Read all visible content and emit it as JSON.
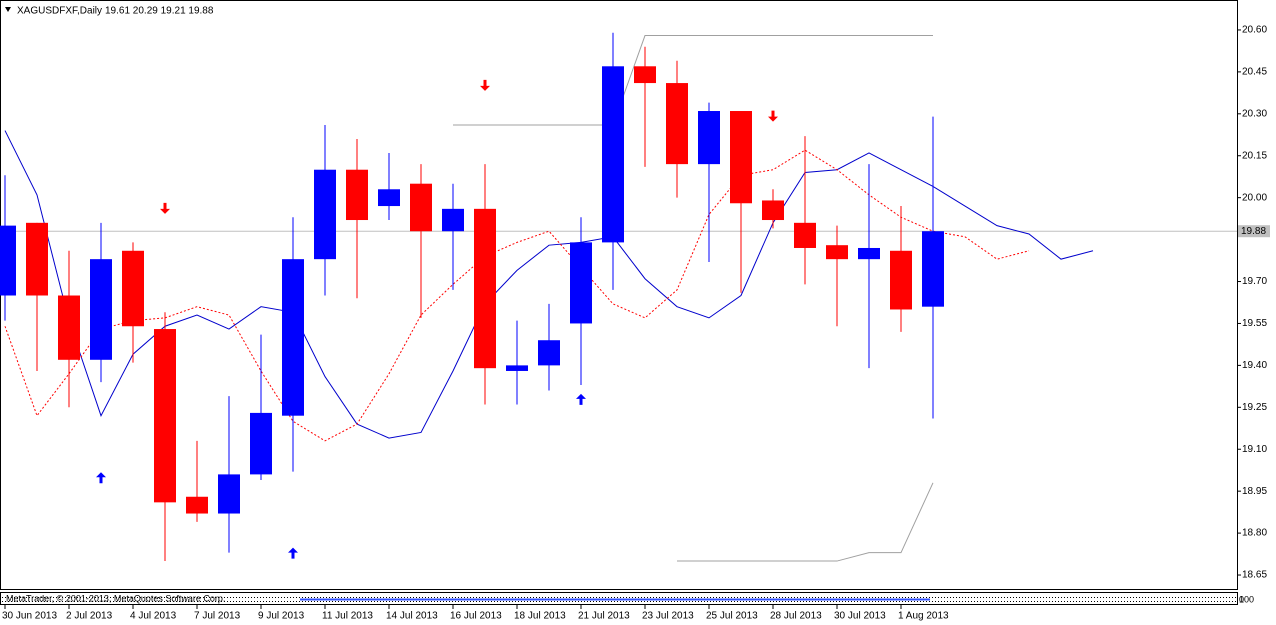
{
  "chart_data": {
    "type": "candlestick",
    "title": "XAGUSDFXF,Daily",
    "subtitle": "19.61 20.29 19.21 19.88",
    "categories": [
      "30 Jun 2013",
      null,
      "2 Jul 2013",
      null,
      "4 Jul 2013",
      null,
      "7 Jul 2013",
      null,
      "9 Jul 2013",
      null,
      "11 Jul 2013",
      null,
      "14 Jul 2013",
      null,
      "16 Jul 2013",
      null,
      "18 Jul 2013",
      null,
      "21 Jul 2013",
      null,
      "23 Jul 2013",
      null,
      "25 Jul 2013",
      null,
      "28 Jul 2013",
      null,
      "30 Jul 2013",
      null,
      "1 Aug 2013",
      null,
      null,
      null,
      null,
      null,
      null
    ],
    "open": [
      19.65,
      19.91,
      19.65,
      19.42,
      19.81,
      19.53,
      18.93,
      18.87,
      19.01,
      19.22,
      19.78,
      20.1,
      19.97,
      20.05,
      19.88,
      19.96,
      19.38,
      19.4,
      19.55,
      19.84,
      20.47,
      20.41,
      20.12,
      20.31,
      19.99,
      19.91,
      19.83,
      19.78,
      19.81,
      19.61,
      null,
      null,
      null,
      null,
      null
    ],
    "high": [
      20.08,
      19.91,
      19.81,
      19.91,
      19.84,
      19.59,
      19.13,
      19.29,
      19.51,
      19.93,
      20.26,
      20.21,
      20.16,
      20.12,
      20.05,
      20.12,
      19.56,
      19.62,
      19.93,
      20.59,
      20.54,
      20.49,
      20.34,
      20.31,
      20.03,
      20.22,
      19.9,
      20.12,
      19.97,
      20.29,
      null,
      null,
      null,
      null,
      null
    ],
    "low": [
      19.56,
      19.38,
      19.25,
      19.34,
      19.41,
      18.7,
      18.84,
      18.73,
      18.99,
      19.02,
      19.65,
      19.64,
      19.92,
      19.57,
      19.67,
      19.26,
      19.26,
      19.31,
      19.33,
      19.67,
      20.11,
      20.0,
      19.77,
      19.66,
      19.89,
      19.69,
      19.54,
      19.39,
      19.52,
      19.21,
      null,
      null,
      null,
      null,
      null
    ],
    "close": [
      19.9,
      19.65,
      19.42,
      19.78,
      19.54,
      18.91,
      18.87,
      19.01,
      19.23,
      19.78,
      20.1,
      19.92,
      20.03,
      19.88,
      19.96,
      19.39,
      19.4,
      19.49,
      19.84,
      20.47,
      20.41,
      20.12,
      20.31,
      19.98,
      19.92,
      19.82,
      19.78,
      19.82,
      19.6,
      19.88,
      null,
      null,
      null,
      null,
      null
    ],
    "up_color": "#0000ff",
    "down_color": "#ff0000",
    "ylim": [
      18.6,
      20.7
    ],
    "yticks": [
      {
        "value": 20.6,
        "label": "20.60"
      },
      {
        "value": 20.45,
        "label": "20.45"
      },
      {
        "value": 20.3,
        "label": "20.30"
      },
      {
        "value": 20.15,
        "label": "20.15"
      },
      {
        "value": 20.0,
        "label": "20.00"
      },
      {
        "value": 19.7,
        "label": "19.70"
      },
      {
        "value": 19.55,
        "label": "19.55"
      },
      {
        "value": 19.4,
        "label": "19.40"
      },
      {
        "value": 19.25,
        "label": "19.25"
      },
      {
        "value": 19.1,
        "label": "19.10"
      },
      {
        "value": 18.95,
        "label": "18.95"
      },
      {
        "value": 18.8,
        "label": "18.80"
      },
      {
        "value": 18.65,
        "label": "18.65"
      }
    ],
    "current_price": 19.88,
    "overlays": [
      {
        "color": "#0000cc",
        "dash": false,
        "values": [
          20.24,
          20.01,
          19.56,
          19.22,
          19.44,
          19.54,
          19.58,
          19.53,
          19.61,
          19.59,
          19.36,
          19.19,
          19.14,
          19.16,
          19.38,
          19.62,
          19.74,
          19.83,
          19.84,
          19.86,
          19.71,
          19.61,
          19.57,
          19.65,
          19.91,
          20.09,
          20.1,
          20.16,
          20.1,
          20.04,
          19.97,
          19.9,
          19.87,
          19.78,
          19.81
        ]
      },
      {
        "color": "#ff0000",
        "dash": true,
        "values": [
          19.54,
          19.22,
          19.37,
          19.53,
          19.56,
          19.57,
          19.61,
          19.58,
          19.38,
          19.2,
          19.13,
          19.19,
          19.37,
          19.58,
          19.69,
          19.79,
          19.84,
          19.88,
          19.75,
          19.62,
          19.57,
          19.67,
          19.94,
          20.08,
          20.1,
          20.17,
          20.1,
          20.01,
          19.93,
          19.88,
          19.86,
          19.78,
          19.81,
          null,
          null
        ]
      },
      {
        "color": "#a0a0a0",
        "dash": false,
        "values": [
          null,
          null,
          null,
          null,
          null,
          null,
          null,
          null,
          null,
          null,
          null,
          null,
          null,
          null,
          20.26,
          20.26,
          20.26,
          20.26,
          20.26,
          20.26,
          20.58,
          20.58,
          20.58,
          20.58,
          20.58,
          20.58,
          20.58,
          20.58,
          20.58,
          20.58,
          null,
          null,
          null,
          null,
          null
        ]
      },
      {
        "color": "#a0a0a0",
        "dash": false,
        "values": [
          null,
          null,
          null,
          null,
          null,
          null,
          null,
          null,
          null,
          null,
          null,
          null,
          null,
          null,
          null,
          null,
          null,
          null,
          null,
          null,
          null,
          18.7,
          18.7,
          18.7,
          18.7,
          18.7,
          18.7,
          18.73,
          18.73,
          18.98,
          null,
          null,
          null,
          null,
          null
        ]
      }
    ],
    "signals": [
      {
        "direction": "down",
        "color": "#ff0000",
        "values": [
          null,
          null,
          null,
          null,
          null,
          19.96,
          null,
          null,
          null,
          null,
          null,
          null,
          null,
          null,
          null,
          20.4,
          null,
          null,
          null,
          null,
          null,
          null,
          null,
          null,
          20.29,
          null,
          null,
          null,
          null,
          null,
          null,
          null,
          null,
          null,
          null
        ]
      },
      {
        "direction": "up",
        "color": "#0000ff",
        "values": [
          null,
          null,
          null,
          19.0,
          null,
          null,
          null,
          null,
          null,
          18.73,
          null,
          null,
          null,
          null,
          null,
          null,
          null,
          null,
          19.28,
          null,
          null,
          null,
          null,
          null,
          null,
          null,
          null,
          null,
          null,
          null,
          null,
          null,
          null,
          null,
          null
        ]
      }
    ],
    "panel_text": "MetaTrader, © 2001-2013, MetaQuotes Software Corp.",
    "panel_ticks": [
      100,
      0
    ]
  }
}
